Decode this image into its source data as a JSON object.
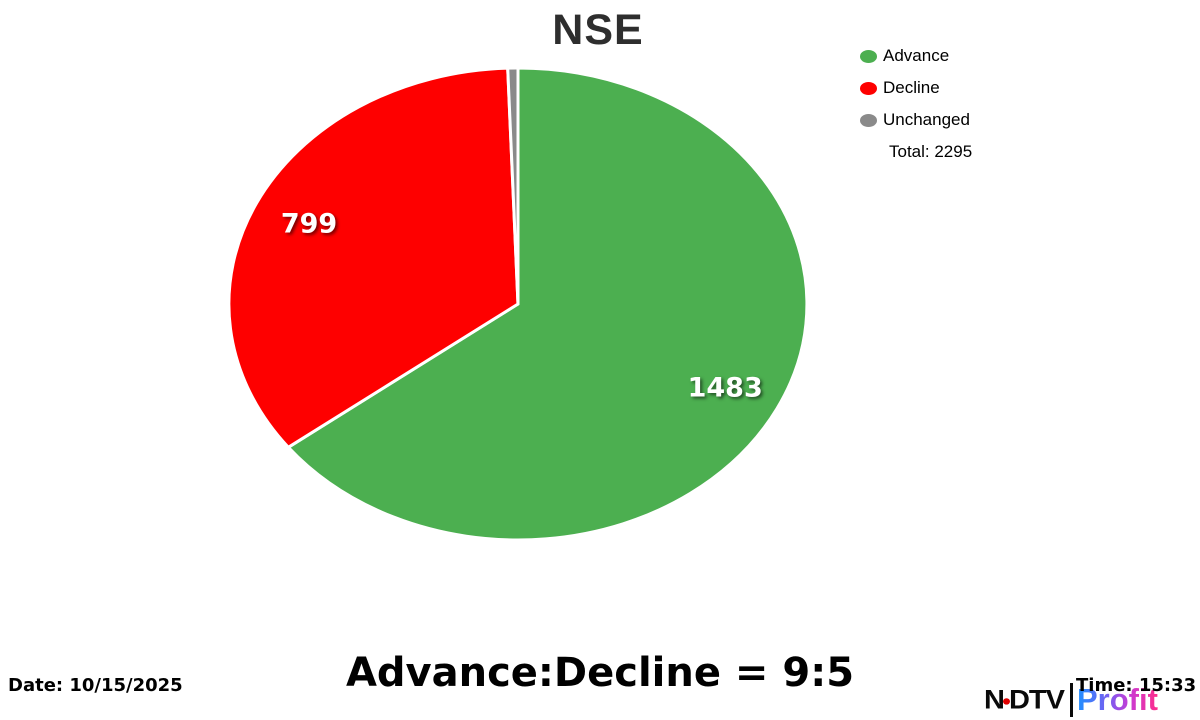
{
  "chart": {
    "title": "NSE"
  },
  "chart_data": {
    "type": "pie",
    "title": "NSE",
    "categories": [
      "Advance",
      "Decline",
      "Unchanged"
    ],
    "values": [
      1483,
      799,
      13
    ],
    "labels": [
      "1483",
      "799",
      ""
    ],
    "colors": [
      "#4caf50",
      "#fe0000",
      "#8a8a8a"
    ],
    "total": 2295,
    "start_angle": "top",
    "direction": "clockwise",
    "legend_position": "top-right"
  },
  "legend": {
    "items": [
      {
        "label": "Advance",
        "color": "#4caf50"
      },
      {
        "label": "Decline",
        "color": "#fe0000"
      },
      {
        "label": "Unchanged",
        "color": "#8a8a8a"
      }
    ],
    "total_text": "Total: 2295"
  },
  "footer": {
    "ratio_text": "Advance:Decline = 9:5",
    "date_text": "Date: 10/15/2025",
    "time_text": "Time: 15:33"
  },
  "logo": {
    "ndtv_left": "N",
    "ndtv_right": "DTV",
    "dot_color": "#e00000",
    "profit": "Profit"
  }
}
